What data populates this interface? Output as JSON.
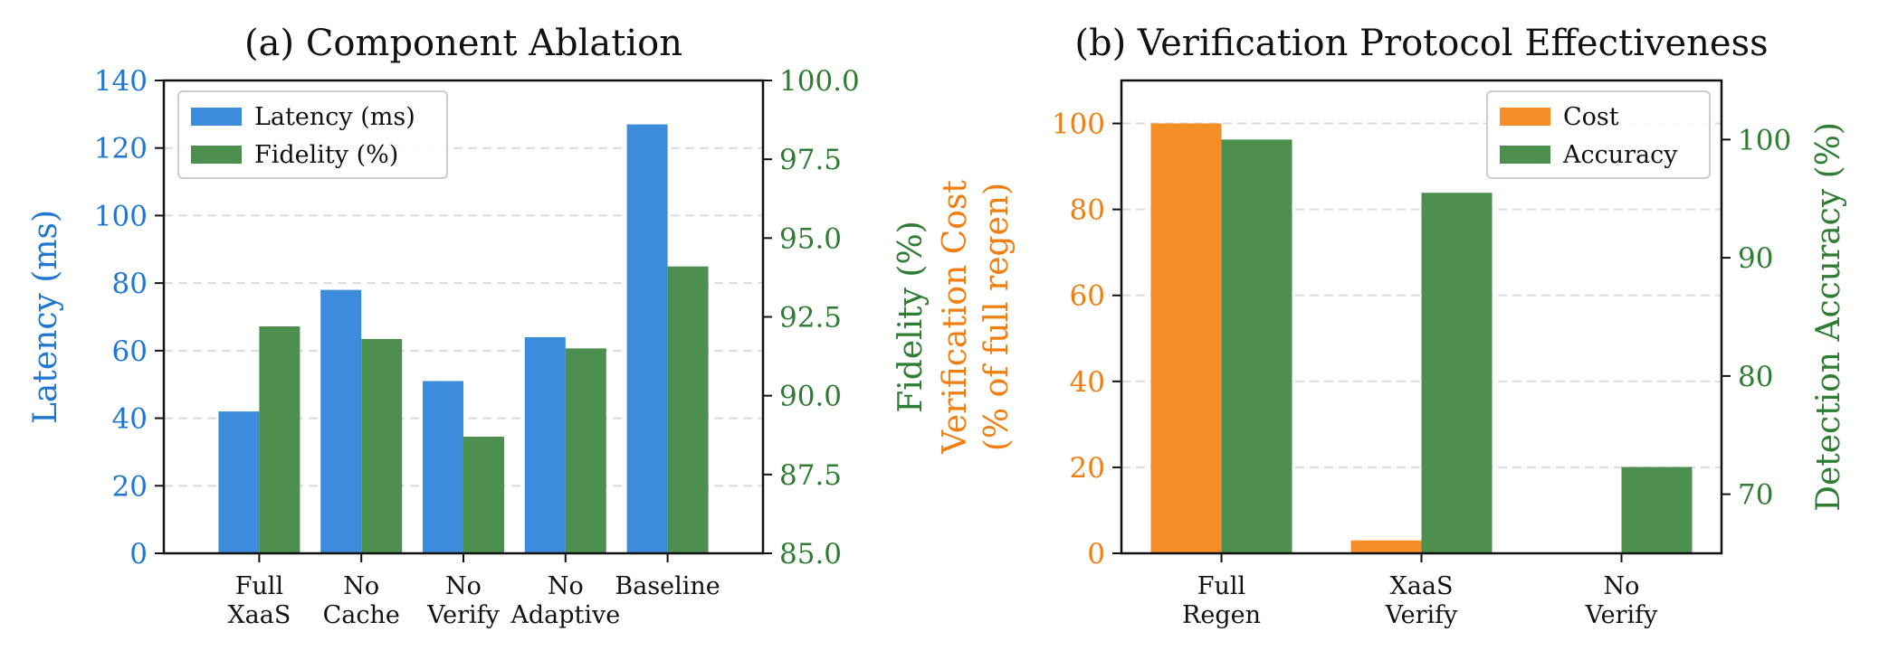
{
  "chart_data": [
    {
      "type": "bar",
      "title": "(a) Component Ablation",
      "categories": [
        [
          "Full",
          "XaaS"
        ],
        [
          "No",
          "Cache"
        ],
        [
          "No",
          "Verify"
        ],
        [
          "No",
          "Adaptive"
        ],
        [
          "Baseline"
        ]
      ],
      "left_axis": {
        "label": "Latency (ms)",
        "color": "#1f77d0",
        "range": [
          0,
          140
        ],
        "ticks": [
          "0",
          "20",
          "40",
          "60",
          "80",
          "100",
          "120",
          "140"
        ]
      },
      "right_axis": {
        "label": "Fidelity (%)",
        "color": "#2e7d32",
        "range": [
          85.0,
          100.0
        ],
        "ticks": [
          "85.0",
          "87.5",
          "90.0",
          "92.5",
          "95.0",
          "97.5",
          "100.0"
        ]
      },
      "series": [
        {
          "name": "Latency (ms)",
          "axis": "left",
          "color": "#3d8bdb",
          "values": [
            42,
            78,
            51,
            64,
            127
          ]
        },
        {
          "name": "Fidelity (%)",
          "axis": "right",
          "color": "#4c8f4f",
          "values": [
            92.2,
            91.8,
            88.7,
            91.5,
            94.1
          ]
        }
      ],
      "grid": true,
      "legend": "top-left"
    },
    {
      "type": "bar",
      "title": "(b) Verification Protocol Effectiveness",
      "categories": [
        [
          "Full",
          "Regen"
        ],
        [
          "XaaS",
          "Verify"
        ],
        [
          "No",
          "Verify"
        ]
      ],
      "left_axis": {
        "label_lines": [
          "Verification Cost",
          "(% of full regen)"
        ],
        "color": "#f07f12",
        "range": [
          0,
          110
        ],
        "ticks": [
          "0",
          "20",
          "40",
          "60",
          "80",
          "100"
        ]
      },
      "right_axis": {
        "label": "Detection Accuracy (%)",
        "color": "#2e7d32",
        "range": [
          65,
          105
        ],
        "ticks": [
          "70",
          "80",
          "90",
          "100"
        ]
      },
      "series": [
        {
          "name": "Cost",
          "axis": "left",
          "color": "#f58e26",
          "values": [
            100,
            3,
            0
          ]
        },
        {
          "name": "Accuracy",
          "axis": "right",
          "color": "#4c8f4f",
          "values": [
            100,
            95.5,
            72.3
          ]
        }
      ],
      "grid": true,
      "legend": "top-right"
    }
  ]
}
